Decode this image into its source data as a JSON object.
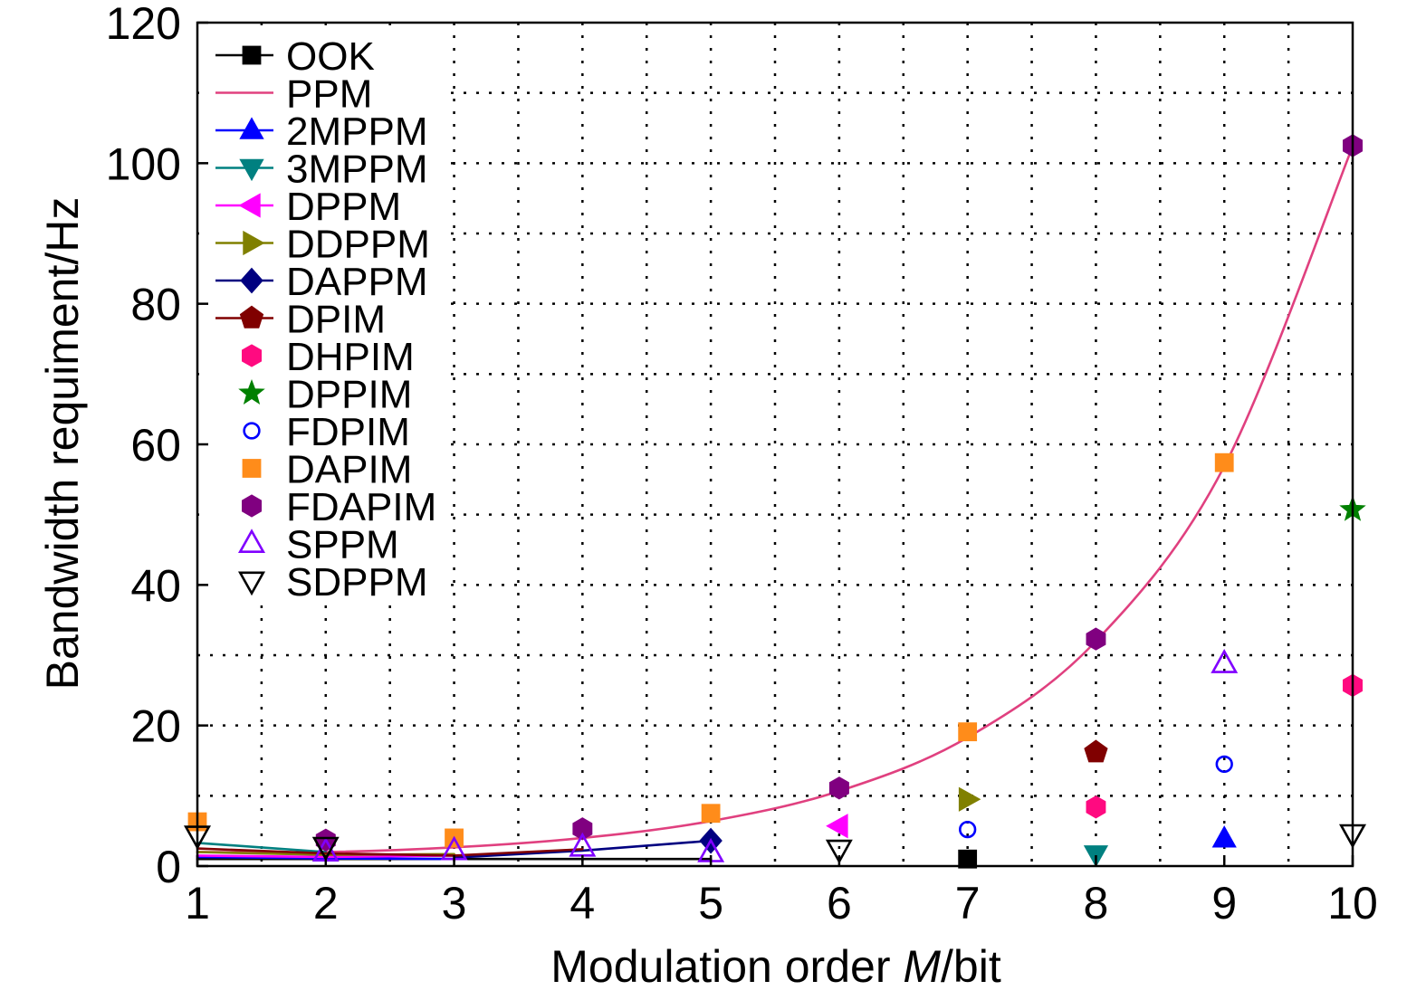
{
  "chart_data": {
    "type": "line",
    "xlabel_parts": [
      "Modulation order ",
      "M",
      "/bit"
    ],
    "ylabel": "Bandwidth requiment/Hz",
    "xlim": [
      1,
      10
    ],
    "ylim": [
      0,
      120
    ],
    "xticks": [
      "1",
      "2",
      "3",
      "4",
      "5",
      "6",
      "7",
      "8",
      "9",
      "10"
    ],
    "yticks": [
      "0",
      "20",
      "40",
      "60",
      "80",
      "100",
      "120"
    ],
    "grid": true,
    "grid_style": "dotted",
    "legend_position": "top-left",
    "series": [
      {
        "name": "OOK",
        "color": "#000000",
        "marker": "square",
        "filled": true,
        "line": [
          [
            1,
            1
          ],
          [
            2,
            1
          ],
          [
            3,
            1
          ],
          [
            4,
            1
          ],
          [
            5,
            1
          ]
        ],
        "markers": [
          [
            7,
            1
          ]
        ]
      },
      {
        "name": "PPM",
        "color": "#e0407f",
        "marker": null,
        "smooth": true,
        "line": [
          [
            1,
            2
          ],
          [
            2,
            2
          ],
          [
            3,
            2.67
          ],
          [
            4,
            4
          ],
          [
            5,
            6.4
          ],
          [
            6,
            10.67
          ],
          [
            7,
            18.29
          ],
          [
            8,
            32
          ],
          [
            9,
            56.89
          ],
          [
            10,
            102.4
          ]
        ],
        "markers": []
      },
      {
        "name": "2MPPM",
        "color": "#0000ff",
        "marker": "triangle-up",
        "filled": true,
        "line": [
          [
            1,
            1.3
          ],
          [
            2,
            1.1
          ],
          [
            3,
            1.0
          ]
        ],
        "markers": [
          [
            9,
            3.9
          ]
        ]
      },
      {
        "name": "3MPPM",
        "color": "#008080",
        "marker": "triangle-down",
        "filled": true,
        "line": [
          [
            1,
            3.3
          ],
          [
            2,
            2.0
          ]
        ],
        "markers": [
          [
            8,
            1.7
          ]
        ]
      },
      {
        "name": "DPPM",
        "color": "#ff00ff",
        "marker": "triangle-left",
        "filled": true,
        "line": [
          [
            1,
            1.5
          ],
          [
            2,
            1.3
          ],
          [
            3,
            1.5
          ]
        ],
        "markers": [
          [
            6,
            5.7
          ]
        ]
      },
      {
        "name": "DDPPM",
        "color": "#808000",
        "marker": "triangle-right",
        "filled": true,
        "line": [
          [
            1,
            2.0
          ],
          [
            2,
            1.6
          ],
          [
            3,
            1.7
          ]
        ],
        "markers": [
          [
            7,
            9.5
          ]
        ]
      },
      {
        "name": "DAPPM",
        "color": "#000080",
        "marker": "diamond",
        "filled": true,
        "line": [
          [
            3,
            1.2
          ],
          [
            4,
            2.2
          ],
          [
            5,
            3.6
          ]
        ],
        "markers": [
          [
            5,
            3.6
          ]
        ]
      },
      {
        "name": "DPIM",
        "color": "#800000",
        "marker": "pentagon",
        "filled": true,
        "line": [
          [
            1,
            2.5
          ],
          [
            2,
            1.8
          ],
          [
            3,
            1.5
          ],
          [
            4,
            2.4
          ]
        ],
        "markers": [
          [
            8,
            16.2
          ]
        ]
      },
      {
        "name": "DHPIM",
        "color": "#ff0a80",
        "marker": "hexagon",
        "filled": true,
        "line": [],
        "markers": [
          [
            8,
            8.4
          ],
          [
            10,
            25.7
          ]
        ]
      },
      {
        "name": "DPPIM",
        "color": "#008000",
        "marker": "star",
        "filled": true,
        "line": [],
        "markers": [
          [
            10,
            50.7
          ]
        ]
      },
      {
        "name": "FDPIM",
        "color": "#0000ff",
        "marker": "circle",
        "filled": false,
        "line": [],
        "markers": [
          [
            7,
            5.2
          ],
          [
            9,
            14.5
          ]
        ]
      },
      {
        "name": "DAPIM",
        "color": "#ff8c1a",
        "marker": "square",
        "filled": true,
        "line": [],
        "markers": [
          [
            1,
            6.3
          ],
          [
            3,
            4.0
          ],
          [
            5,
            7.5
          ],
          [
            7,
            19.1
          ],
          [
            9,
            57.4
          ]
        ]
      },
      {
        "name": "FDAPIM",
        "color": "#800080",
        "marker": "hexagon",
        "filled": true,
        "line": [],
        "markers": [
          [
            2,
            3.7
          ],
          [
            4,
            5.3
          ],
          [
            6,
            11.1
          ],
          [
            8,
            32.3
          ],
          [
            10,
            102.5
          ]
        ]
      },
      {
        "name": "SPPM",
        "color": "#8000ff",
        "marker": "triangle-up",
        "filled": false,
        "line": [],
        "markers": [
          [
            2,
            2.0
          ],
          [
            3,
            2.2
          ],
          [
            4,
            2.7
          ],
          [
            5,
            1.9
          ],
          [
            9,
            28.8
          ]
        ]
      },
      {
        "name": "SDPPM",
        "color": "#000000",
        "marker": "triangle-down",
        "filled": false,
        "line": [],
        "markers": [
          [
            1,
            4.4
          ],
          [
            2,
            2.8
          ],
          [
            6,
            2.4
          ],
          [
            10,
            4.6
          ]
        ]
      }
    ]
  }
}
